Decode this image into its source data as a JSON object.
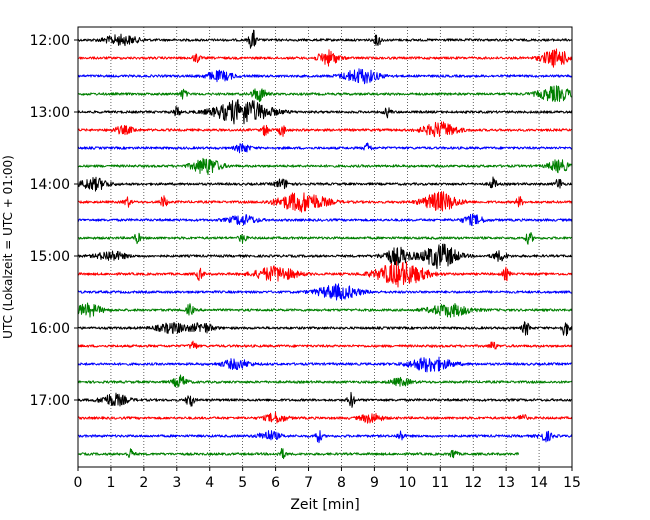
{
  "chart_data": {
    "type": "line",
    "title": "",
    "xlabel": "Zeit  [min]",
    "ylabel": "UTC (Lokalzeit = UTC + 01:00)",
    "xlim": [
      0,
      15
    ],
    "x_ticks": [
      "0",
      "1",
      "2",
      "3",
      "4",
      "5",
      "6",
      "7",
      "8",
      "9",
      "10",
      "11",
      "12",
      "13",
      "14",
      "15"
    ],
    "y_ticks": [
      "12:00",
      "13:00",
      "14:00",
      "15:00",
      "16:00",
      "17:00"
    ],
    "grid": "vertical-dotted",
    "legend": "none",
    "trace_colors": [
      "#000000",
      "#ff0000",
      "#0000ff",
      "#008000"
    ],
    "series": [
      {
        "start": "12:00",
        "color": "#000000",
        "events": [
          [
            1.3,
            0.4,
            0.5
          ],
          [
            5.3,
            0.9,
            0.1
          ],
          [
            9.1,
            0.5,
            0.1
          ]
        ]
      },
      {
        "start": "12:15",
        "color": "#ff0000",
        "events": [
          [
            3.6,
            0.4,
            0.1
          ],
          [
            7.6,
            0.6,
            0.3
          ],
          [
            14.5,
            0.7,
            0.4
          ]
        ]
      },
      {
        "start": "12:30",
        "color": "#0000ff",
        "events": [
          [
            4.3,
            0.4,
            0.4
          ],
          [
            8.6,
            0.6,
            0.5
          ]
        ]
      },
      {
        "start": "12:45",
        "color": "#008000",
        "events": [
          [
            3.2,
            0.4,
            0.1
          ],
          [
            5.5,
            0.6,
            0.2
          ],
          [
            14.5,
            0.6,
            0.5
          ]
        ]
      },
      {
        "start": "13:00",
        "color": "#000000",
        "events": [
          [
            3.0,
            0.4,
            0.1
          ],
          [
            5.0,
            1.0,
            0.8
          ],
          [
            9.4,
            0.4,
            0.1
          ]
        ]
      },
      {
        "start": "13:15",
        "color": "#ff0000",
        "events": [
          [
            1.4,
            0.3,
            0.3
          ],
          [
            5.7,
            0.5,
            0.1
          ],
          [
            6.2,
            0.5,
            0.1
          ],
          [
            11.0,
            0.6,
            0.5
          ]
        ]
      },
      {
        "start": "13:30",
        "color": "#0000ff",
        "events": [
          [
            5.0,
            0.4,
            0.2
          ],
          [
            8.8,
            0.4,
            0.1
          ]
        ]
      },
      {
        "start": "13:45",
        "color": "#008000",
        "events": [
          [
            3.9,
            0.7,
            0.4
          ],
          [
            14.6,
            0.5,
            0.3
          ]
        ]
      },
      {
        "start": "14:00",
        "color": "#000000",
        "events": [
          [
            0.5,
            0.5,
            0.4
          ],
          [
            6.2,
            0.4,
            0.2
          ],
          [
            12.6,
            0.5,
            0.1
          ],
          [
            14.6,
            0.5,
            0.1
          ]
        ]
      },
      {
        "start": "14:15",
        "color": "#ff0000",
        "events": [
          [
            1.5,
            0.4,
            0.1
          ],
          [
            2.6,
            0.5,
            0.1
          ],
          [
            6.8,
            0.8,
            0.7
          ],
          [
            11.0,
            0.8,
            0.5
          ],
          [
            13.4,
            0.4,
            0.1
          ]
        ]
      },
      {
        "start": "14:30",
        "color": "#0000ff",
        "events": [
          [
            5.0,
            0.4,
            0.4
          ],
          [
            12.0,
            0.4,
            0.3
          ]
        ]
      },
      {
        "start": "14:45",
        "color": "#008000",
        "events": [
          [
            1.8,
            0.4,
            0.1
          ],
          [
            5.0,
            0.4,
            0.1
          ],
          [
            13.7,
            0.5,
            0.1
          ]
        ]
      },
      {
        "start": "15:00",
        "color": "#000000",
        "events": [
          [
            1.0,
            0.4,
            0.4
          ],
          [
            9.7,
            0.7,
            0.4
          ],
          [
            11.0,
            1.0,
            0.5
          ],
          [
            12.8,
            0.4,
            0.2
          ]
        ]
      },
      {
        "start": "15:15",
        "color": "#ff0000",
        "events": [
          [
            3.7,
            0.5,
            0.1
          ],
          [
            6.0,
            0.6,
            0.6
          ],
          [
            9.8,
            1.0,
            0.7
          ],
          [
            13.0,
            0.5,
            0.1
          ]
        ]
      },
      {
        "start": "15:30",
        "color": "#0000ff",
        "events": [
          [
            7.9,
            0.6,
            0.6
          ]
        ]
      },
      {
        "start": "15:45",
        "color": "#008000",
        "events": [
          [
            0.3,
            0.5,
            0.4
          ],
          [
            3.4,
            0.5,
            0.1
          ],
          [
            11.3,
            0.5,
            0.6
          ]
        ]
      },
      {
        "start": "16:00",
        "color": "#000000",
        "events": [
          [
            2.9,
            0.4,
            0.5
          ],
          [
            3.8,
            0.4,
            0.3
          ],
          [
            13.6,
            0.6,
            0.1
          ],
          [
            14.8,
            0.7,
            0.1
          ]
        ]
      },
      {
        "start": "16:15",
        "color": "#ff0000",
        "events": [
          [
            3.5,
            0.4,
            0.1
          ],
          [
            12.6,
            0.4,
            0.1
          ]
        ]
      },
      {
        "start": "16:30",
        "color": "#0000ff",
        "events": [
          [
            4.8,
            0.4,
            0.4
          ],
          [
            10.7,
            0.6,
            0.6
          ]
        ]
      },
      {
        "start": "16:45",
        "color": "#008000",
        "events": [
          [
            3.1,
            0.5,
            0.2
          ],
          [
            9.8,
            0.3,
            0.3
          ]
        ]
      },
      {
        "start": "17:00",
        "color": "#000000",
        "events": [
          [
            1.1,
            0.5,
            0.4
          ],
          [
            3.4,
            0.7,
            0.1
          ],
          [
            8.3,
            0.6,
            0.1
          ]
        ]
      },
      {
        "start": "17:15",
        "color": "#ff0000",
        "events": [
          [
            6.0,
            0.4,
            0.3
          ],
          [
            8.9,
            0.4,
            0.3
          ],
          [
            13.5,
            0.4,
            0.1
          ]
        ]
      },
      {
        "start": "17:30",
        "color": "#0000ff",
        "events": [
          [
            5.8,
            0.4,
            0.3
          ],
          [
            7.3,
            0.5,
            0.1
          ],
          [
            9.8,
            0.4,
            0.1
          ],
          [
            14.2,
            0.4,
            0.2
          ]
        ]
      },
      {
        "start": "17:45",
        "color": "#008000",
        "end_minute": 13.4,
        "events": [
          [
            1.6,
            0.4,
            0.1
          ],
          [
            6.2,
            0.4,
            0.1
          ],
          [
            11.4,
            0.4,
            0.1
          ]
        ]
      }
    ]
  }
}
